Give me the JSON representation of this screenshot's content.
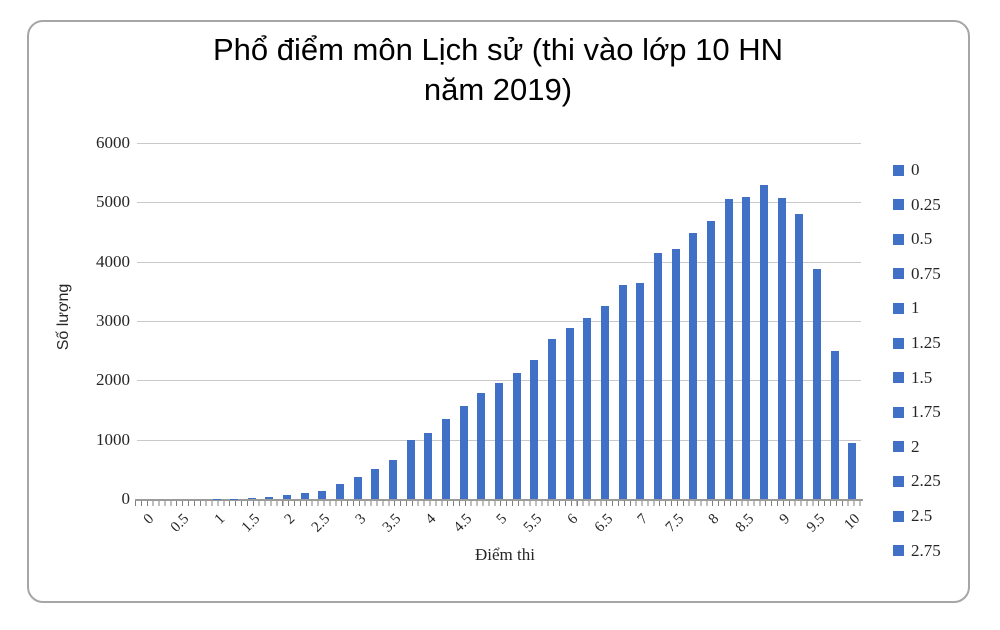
{
  "panel_title_lines": [
    "Phổ điểm môn Lịch sử (thi vào lớp 10 HN",
    "năm 2019)"
  ],
  "chart_data": {
    "type": "bar",
    "title": "Phổ điểm môn Lịch sử (thi vào lớp 10 HN năm 2019)",
    "xlabel": "Điểm thi",
    "ylabel": "Số lượng",
    "categories": [
      "0",
      "0.25",
      "0.5",
      "0.75",
      "1",
      "1.25",
      "1.5",
      "1.75",
      "2",
      "2.25",
      "2.5",
      "2.75",
      "3",
      "3.25",
      "3.5",
      "3.75",
      "4",
      "4.25",
      "4.5",
      "4.75",
      "5",
      "5.25",
      "5.5",
      "5.75",
      "6",
      "6.25",
      "6.5",
      "6.75",
      "7",
      "7.25",
      "7.5",
      "7.75",
      "8",
      "8.25",
      "8.5",
      "8.75",
      "9",
      "9.25",
      "9.5",
      "9.75",
      "10"
    ],
    "values": [
      0,
      0,
      0,
      0,
      5,
      5,
      10,
      35,
      70,
      110,
      140,
      250,
      370,
      510,
      650,
      1000,
      1110,
      1350,
      1560,
      1790,
      1950,
      2120,
      2340,
      2690,
      2880,
      3050,
      3260,
      3600,
      3640,
      4150,
      4220,
      4490,
      4690,
      5060,
      5090,
      5300,
      5080,
      4810,
      3880,
      2490,
      940
    ],
    "x_tick_labels": [
      "0",
      "0.5",
      "1",
      "1.5",
      "2",
      "2.5",
      "3",
      "3.5",
      "4",
      "4.5",
      "5",
      "5.5",
      "6",
      "6.5",
      "7",
      "7.5",
      "8",
      "8.5",
      "9",
      "9.5",
      "10"
    ],
    "y_ticks": [
      0,
      1000,
      2000,
      3000,
      4000,
      5000,
      6000
    ],
    "ylim": [
      0,
      6000
    ],
    "grid": "horizontal-only",
    "legend_position": "right",
    "legend_entries_visible": [
      "0",
      "0.25",
      "0.5",
      "0.75",
      "1",
      "1.25",
      "1.5",
      "1.75",
      "2",
      "2.25",
      "2.5",
      "2.75"
    ],
    "bar_color": "#4170C7"
  },
  "colors": {
    "bar": "#4170C7",
    "gridline": "#C9C9C9",
    "axis": "#9B9B9B",
    "tick": "#7F7F7F",
    "panel_border": "#A6A6A6",
    "text": "#1A1A1A"
  }
}
